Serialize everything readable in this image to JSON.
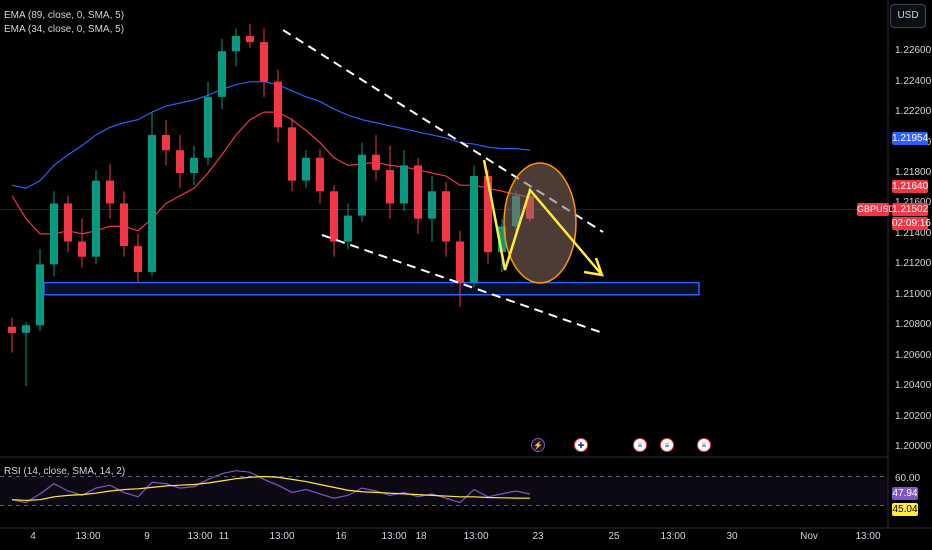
{
  "legend": {
    "ema89": "EMA (89, close, 0, SMA, 5)",
    "ema34": "EMA (34, close, 0, SMA, 5)",
    "rsi": "RSI (14, close, SMA, 14, 2)"
  },
  "currency_button": "USD",
  "symbol": "GBPUSD",
  "price_labels": {
    "ema89_value": "1.21954",
    "ema34_value": "1.21640",
    "last_price": "1.21502",
    "countdown": "02:09:16"
  },
  "rsi_labels": {
    "rsi_value": "47.94",
    "rsi_ma_value": "45.04",
    "level": "60.00"
  },
  "event_icons": [
    "flash-icon",
    "uk-flag-icon",
    "us-flag-icon",
    "us-flag-icon",
    "us-flag-icon"
  ],
  "colors": {
    "up": "#089981",
    "down": "#f23645",
    "ema89": "#2962ff",
    "ema34": "#f23645",
    "support_zone": "#2962ff",
    "annotation": "#ffeb3b",
    "rsi": "#7e57c2",
    "rsi_ma": "#ffeb3b"
  },
  "chart_data": {
    "type": "candlestick",
    "symbol": "GBPUSD",
    "ylim": [
      1.2,
      1.227
    ],
    "y_ticks": [
      "1.22600",
      "1.22400",
      "1.22200",
      "1.22000",
      "1.21800",
      "1.21600",
      "1.21400",
      "1.21200",
      "1.21000",
      "1.20800",
      "1.20600",
      "1.20400",
      "1.20200",
      "1.20000"
    ],
    "x_ticks": [
      "4",
      "13:00",
      "9",
      "13:00",
      "11",
      "13:00",
      "16",
      "13:00",
      "18",
      "13:00",
      "23",
      "25",
      "13:00",
      "30",
      "Nov",
      "13:00"
    ],
    "candles": [
      {
        "o": 1.2079,
        "h": 1.2085,
        "l": 1.2062,
        "c": 1.2075
      },
      {
        "o": 1.2075,
        "h": 1.2082,
        "l": 1.204,
        "c": 1.208
      },
      {
        "o": 1.208,
        "h": 1.213,
        "l": 1.2076,
        "c": 1.212
      },
      {
        "o": 1.212,
        "h": 1.2168,
        "l": 1.2112,
        "c": 1.216
      },
      {
        "o": 1.216,
        "h": 1.2165,
        "l": 1.2128,
        "c": 1.2135
      },
      {
        "o": 1.2135,
        "h": 1.215,
        "l": 1.2118,
        "c": 1.2125
      },
      {
        "o": 1.2125,
        "h": 1.2182,
        "l": 1.212,
        "c": 1.2175
      },
      {
        "o": 1.2175,
        "h": 1.2186,
        "l": 1.215,
        "c": 1.216
      },
      {
        "o": 1.216,
        "h": 1.2168,
        "l": 1.2125,
        "c": 1.2132
      },
      {
        "o": 1.2132,
        "h": 1.214,
        "l": 1.2108,
        "c": 1.2115
      },
      {
        "o": 1.2115,
        "h": 1.222,
        "l": 1.2112,
        "c": 1.2205
      },
      {
        "o": 1.2205,
        "h": 1.2215,
        "l": 1.2185,
        "c": 1.2195
      },
      {
        "o": 1.2195,
        "h": 1.2205,
        "l": 1.217,
        "c": 1.218
      },
      {
        "o": 1.218,
        "h": 1.2198,
        "l": 1.2172,
        "c": 1.219
      },
      {
        "o": 1.219,
        "h": 1.224,
        "l": 1.2185,
        "c": 1.223
      },
      {
        "o": 1.223,
        "h": 1.2268,
        "l": 1.2222,
        "c": 1.226
      },
      {
        "o": 1.226,
        "h": 1.2275,
        "l": 1.225,
        "c": 1.227
      },
      {
        "o": 1.227,
        "h": 1.2278,
        "l": 1.2262,
        "c": 1.2266
      },
      {
        "o": 1.2266,
        "h": 1.2275,
        "l": 1.223,
        "c": 1.224
      },
      {
        "o": 1.224,
        "h": 1.2248,
        "l": 1.22,
        "c": 1.221
      },
      {
        "o": 1.221,
        "h": 1.2216,
        "l": 1.2168,
        "c": 1.2175
      },
      {
        "o": 1.2175,
        "h": 1.2195,
        "l": 1.217,
        "c": 1.219
      },
      {
        "o": 1.219,
        "h": 1.2196,
        "l": 1.216,
        "c": 1.2168
      },
      {
        "o": 1.2168,
        "h": 1.2172,
        "l": 1.2125,
        "c": 1.2135
      },
      {
        "o": 1.2135,
        "h": 1.216,
        "l": 1.213,
        "c": 1.2152
      },
      {
        "o": 1.2152,
        "h": 1.22,
        "l": 1.2148,
        "c": 1.2192
      },
      {
        "o": 1.2192,
        "h": 1.2205,
        "l": 1.2175,
        "c": 1.2182
      },
      {
        "o": 1.2182,
        "h": 1.2198,
        "l": 1.215,
        "c": 1.216
      },
      {
        "o": 1.216,
        "h": 1.2195,
        "l": 1.2155,
        "c": 1.2185
      },
      {
        "o": 1.2185,
        "h": 1.219,
        "l": 1.214,
        "c": 1.215
      },
      {
        "o": 1.215,
        "h": 1.2178,
        "l": 1.2135,
        "c": 1.2168
      },
      {
        "o": 1.2168,
        "h": 1.2174,
        "l": 1.2125,
        "c": 1.2135
      },
      {
        "o": 1.2135,
        "h": 1.2142,
        "l": 1.2092,
        "c": 1.2108
      },
      {
        "o": 1.2108,
        "h": 1.2185,
        "l": 1.2105,
        "c": 1.2178
      },
      {
        "o": 1.2178,
        "h": 1.2182,
        "l": 1.212,
        "c": 1.2128
      },
      {
        "o": 1.2128,
        "h": 1.215,
        "l": 1.2115,
        "c": 1.2145
      },
      {
        "o": 1.2145,
        "h": 1.2168,
        "l": 1.214,
        "c": 1.2165
      },
      {
        "o": 1.2165,
        "h": 1.217,
        "l": 1.2148,
        "c": 1.215
      }
    ],
    "ema89": [
      1.2172,
      1.217,
      1.2175,
      1.2185,
      1.2192,
      1.2198,
      1.2205,
      1.221,
      1.2213,
      1.2215,
      1.222,
      1.2224,
      1.2226,
      1.2228,
      1.2231,
      1.2235,
      1.2238,
      1.224,
      1.224,
      1.2238,
      1.2234,
      1.223,
      1.2227,
      1.2222,
      1.2218,
      1.2215,
      1.2213,
      1.2211,
      1.2209,
      1.2207,
      1.2205,
      1.2203,
      1.22,
      1.2199,
      1.2197,
      1.2196,
      1.2196,
      1.2195
    ],
    "ema34": [
      1.2165,
      1.215,
      1.214,
      1.214,
      1.2142,
      1.214,
      1.2142,
      1.2145,
      1.2145,
      1.2142,
      1.215,
      1.216,
      1.2165,
      1.217,
      1.218,
      1.2192,
      1.2205,
      1.2215,
      1.222,
      1.222,
      1.2215,
      1.2208,
      1.22,
      1.219,
      1.2185,
      1.2186,
      1.2187,
      1.2185,
      1.2184,
      1.2182,
      1.218,
      1.2178,
      1.2172,
      1.2172,
      1.217,
      1.2168,
      1.2166,
      1.2164
    ],
    "support_zone": [
      1.21,
      1.2108
    ],
    "rsi": {
      "ylim": [
        30,
        70
      ],
      "levels": [
        60,
        40
      ],
      "rsi": [
        44,
        42,
        48,
        55,
        50,
        47,
        52,
        54,
        49,
        46,
        56,
        55,
        52,
        53,
        58,
        62,
        64,
        63,
        58,
        54,
        49,
        51,
        48,
        45,
        47,
        52,
        50,
        47,
        49,
        46,
        48,
        45,
        42,
        51,
        46,
        48,
        50,
        47.94
      ],
      "rsi_ma": [
        44,
        43.5,
        44,
        46,
        47,
        47.5,
        48.5,
        50,
        51,
        51.5,
        52.5,
        53.5,
        54,
        54.5,
        55.5,
        57,
        58.5,
        59.5,
        60,
        59.5,
        58,
        56.5,
        54.5,
        52.5,
        50.5,
        49.5,
        49,
        48.5,
        48,
        47.5,
        47,
        46.5,
        46,
        46,
        45.5,
        45.3,
        45.1,
        45.04
      ]
    }
  }
}
